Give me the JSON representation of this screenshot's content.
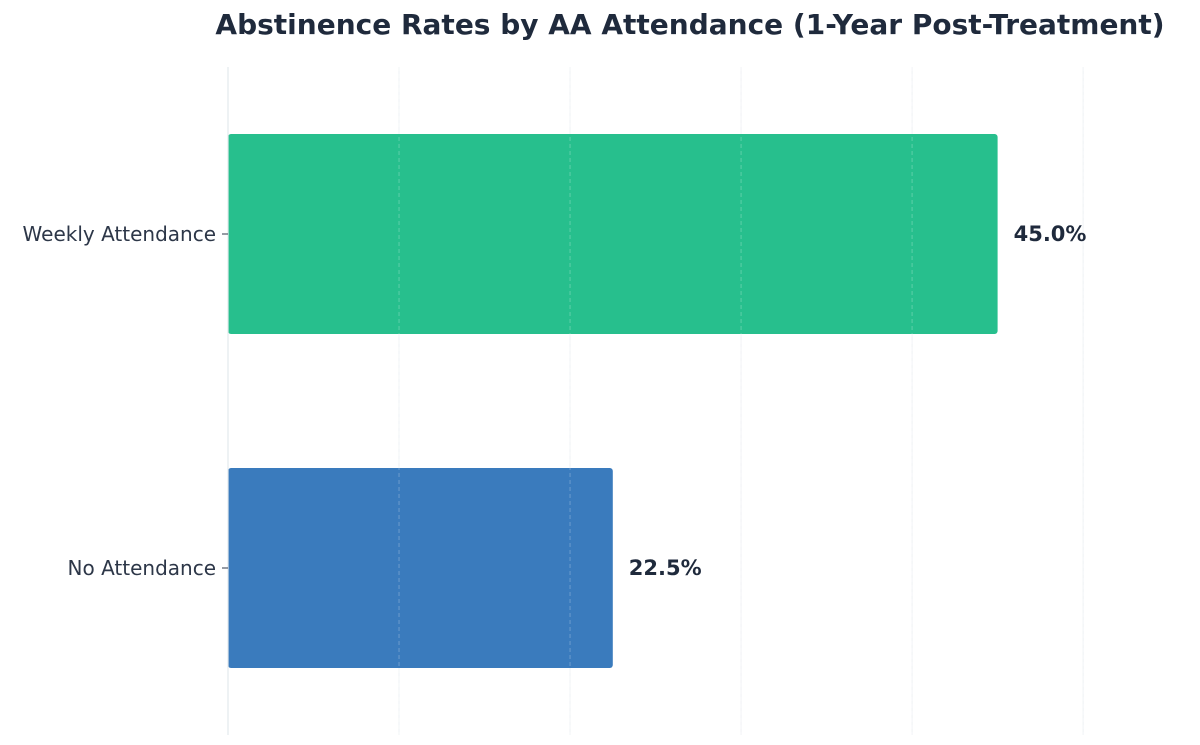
{
  "chart_data": {
    "type": "bar",
    "orientation": "horizontal",
    "title": "Abstinence Rates by AA Attendance (1-Year Post-Treatment)",
    "xlabel": "",
    "ylabel": "",
    "categories": [
      "Weekly Attendance",
      "No Attendance"
    ],
    "values": [
      45.0,
      22.5
    ],
    "data_labels": [
      "45.0%",
      "22.5%"
    ],
    "colors": [
      "#27bf8d",
      "#3a7bbd"
    ],
    "xlim": [
      0,
      56.25
    ],
    "grid": true,
    "grid_ticks": [
      10,
      20,
      30,
      40,
      50
    ],
    "x_tick_labels_visible": false,
    "legend": "none"
  }
}
